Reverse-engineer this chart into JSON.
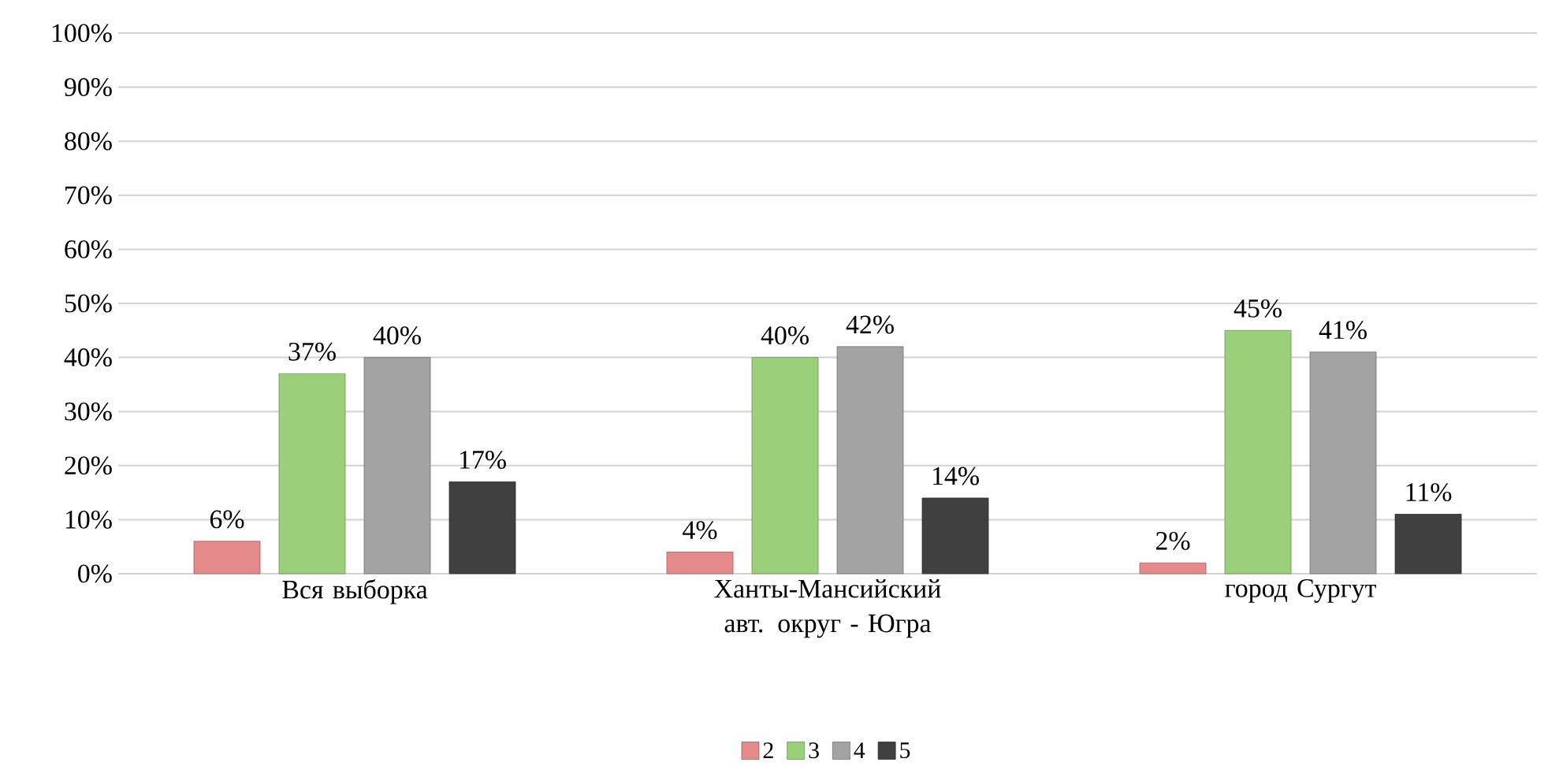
{
  "chart_data": {
    "type": "bar",
    "categories": [
      "Вся выборка",
      "Ханты-Мансийский авт. округ - Югра",
      "город Сургут"
    ],
    "series": [
      {
        "name": "2",
        "color": "#e58a8a",
        "values": [
          6,
          4,
          2
        ],
        "value_labels": [
          "6%",
          "4%",
          "2%"
        ]
      },
      {
        "name": "3",
        "color": "#9bd07a",
        "values": [
          37,
          40,
          45
        ],
        "value_labels": [
          "37%",
          "40%",
          "45%"
        ]
      },
      {
        "name": "4",
        "color": "#a3a3a3",
        "values": [
          40,
          42,
          41
        ],
        "value_labels": [
          "40%",
          "42%",
          "41%"
        ]
      },
      {
        "name": "5",
        "color": "#404040",
        "values": [
          17,
          14,
          11
        ],
        "value_labels": [
          "17%",
          "14%",
          "11%"
        ]
      }
    ],
    "ylim": [
      0,
      100
    ],
    "yticks": [
      {
        "value": 0,
        "label": "0%"
      },
      {
        "value": 10,
        "label": "10%"
      },
      {
        "value": 20,
        "label": "20%"
      },
      {
        "value": 30,
        "label": "30%"
      },
      {
        "value": 40,
        "label": "40%"
      },
      {
        "value": 50,
        "label": "50%"
      },
      {
        "value": 60,
        "label": "60%"
      },
      {
        "value": 70,
        "label": "70%"
      },
      {
        "value": 80,
        "label": "80%"
      },
      {
        "value": 90,
        "label": "90%"
      },
      {
        "value": 100,
        "label": "100%"
      }
    ],
    "grid": "y",
    "legend": "bottom"
  }
}
